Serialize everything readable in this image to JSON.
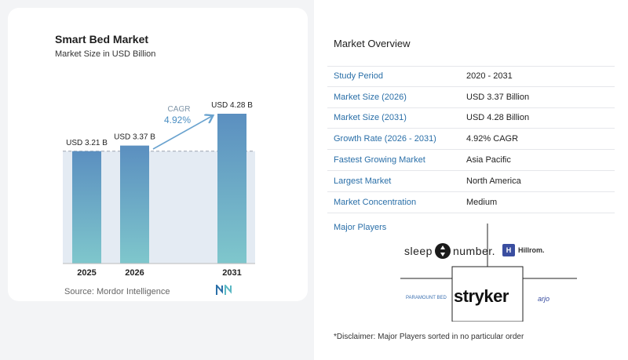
{
  "chart_data": {
    "type": "bar",
    "title": "Smart Bed Market",
    "subtitle": "Market Size in USD Billion",
    "categories": [
      "2025",
      "2026",
      "2031"
    ],
    "values": [
      3.21,
      3.37,
      4.28
    ],
    "data_labels": [
      "USD 3.21 B",
      "USD 3.37 B",
      "USD 4.28 B"
    ],
    "cagr_label": "CAGR",
    "cagr_value": "4.92%",
    "reference_line_value": 3.21,
    "ylim": [
      0,
      4.28
    ],
    "grid": false,
    "colors": {
      "bar_top": "#5b8fc0",
      "bar_bottom": "#7fc7cc",
      "shade": "#e4ebf3",
      "arrow": "#6aa3cf"
    }
  },
  "source_label": "Source:",
  "source_name": "Mordor Intelligence",
  "overview": {
    "title": "Market Overview",
    "rows": [
      {
        "label": "Study Period",
        "value": "2020 - 2031"
      },
      {
        "label": "Market Size (2026)",
        "value": "USD 3.37 Billion"
      },
      {
        "label": "Market Size (2031)",
        "value": "USD 4.28 Billion"
      },
      {
        "label": "Growth Rate (2026 - 2031)",
        "value": "4.92% CAGR"
      },
      {
        "label": "Fastest Growing Market",
        "value": "Asia Pacific"
      },
      {
        "label": "Largest Market",
        "value": "North America"
      },
      {
        "label": "Market Concentration",
        "value": "Medium"
      }
    ]
  },
  "players": {
    "title": "Major Players",
    "sleep_1": "sleep",
    "sleep_2": "number.",
    "hillrom": "Hillrom.",
    "hillrom_mark": "H",
    "stryker": "stryker",
    "paramount": "PARAMOUNT BED",
    "arjo": "arjo"
  },
  "disclaimer": "*Disclaimer: Major Players sorted in no particular order"
}
